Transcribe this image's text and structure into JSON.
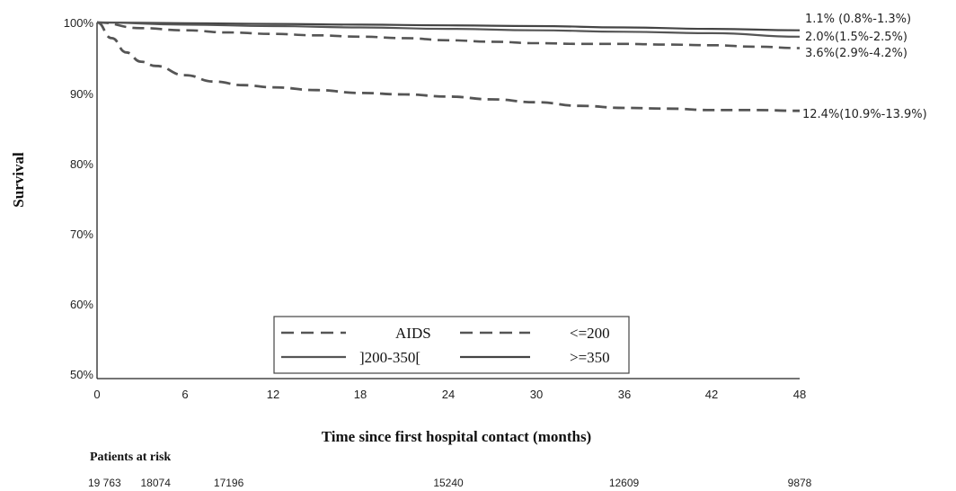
{
  "chart_data": {
    "type": "line",
    "xlabel": "Time since first hospital contact (months)",
    "ylabel": "Survival",
    "xlim": [
      0,
      48
    ],
    "ylim": [
      50,
      100
    ],
    "x_ticks": [
      "0",
      "6",
      "12",
      "18",
      "24",
      "30",
      "36",
      "42",
      "48"
    ],
    "y_ticks": [
      "100%",
      "90%",
      "80%",
      "70%",
      "60%",
      "50%"
    ],
    "grid": false,
    "legend_position": "bottom-center",
    "series": [
      {
        "name": "AIDS",
        "style": "dashed",
        "end_label": "12.4%(10.9%-13.9%)",
        "x": [
          0,
          1,
          2,
          3,
          4,
          6,
          8,
          10,
          12,
          15,
          18,
          21,
          24,
          27,
          30,
          33,
          36,
          39,
          42,
          45,
          48
        ],
        "y": [
          100,
          97.8,
          95.8,
          94.5,
          93.9,
          92.6,
          91.7,
          91.2,
          90.9,
          90.5,
          90.1,
          89.9,
          89.6,
          89.2,
          88.8,
          88.3,
          88.0,
          87.9,
          87.7,
          87.7,
          87.6
        ]
      },
      {
        "name": "<=200",
        "style": "dashed",
        "end_label": "3.6%(2.9%-4.2%)",
        "x": [
          0,
          3,
          6,
          9,
          12,
          15,
          18,
          21,
          24,
          27,
          30,
          33,
          36,
          39,
          42,
          45,
          48
        ],
        "y": [
          100,
          99.2,
          98.9,
          98.6,
          98.4,
          98.2,
          98.0,
          97.8,
          97.5,
          97.3,
          97.1,
          97.0,
          97.0,
          96.9,
          96.8,
          96.6,
          96.4
        ]
      },
      {
        "name": "]200-350[",
        "style": "solid",
        "end_label": "2.0%(1.5%-2.5%)",
        "x": [
          0,
          6,
          12,
          18,
          24,
          30,
          36,
          42,
          48
        ],
        "y": [
          100,
          99.7,
          99.5,
          99.3,
          99.1,
          98.9,
          98.7,
          98.5,
          98.0
        ]
      },
      {
        "name": ">=350",
        "style": "solid",
        "end_label": "1.1% (0.8%-1.3%)",
        "x": [
          0,
          6,
          12,
          18,
          24,
          30,
          36,
          42,
          48
        ],
        "y": [
          100,
          99.9,
          99.8,
          99.7,
          99.6,
          99.5,
          99.3,
          99.1,
          98.9
        ]
      }
    ],
    "legend_entries": [
      "AIDS",
      "<=200",
      "]200-350[",
      ">=350"
    ],
    "patients_at_risk": {
      "title": "Patients at risk",
      "values": [
        {
          "month": 0,
          "count": "19 763"
        },
        {
          "month": 4,
          "count": "18074"
        },
        {
          "month": 9,
          "count": "17196"
        },
        {
          "month": 24,
          "count": "15240"
        },
        {
          "month": 36,
          "count": "12609"
        },
        {
          "month": 48,
          "count": "9878"
        }
      ]
    }
  }
}
